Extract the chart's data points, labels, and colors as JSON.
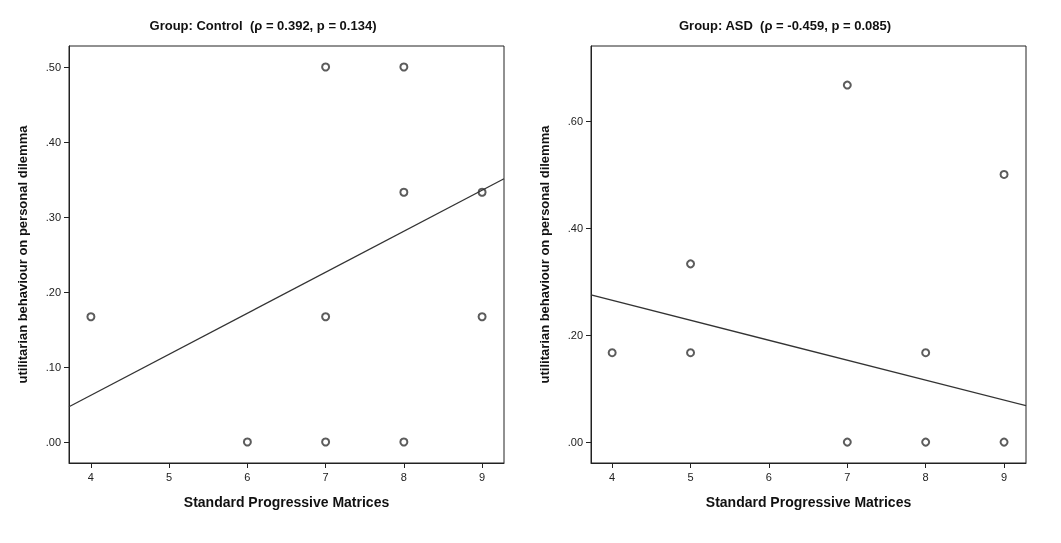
{
  "chart_data": [
    {
      "type": "scatter",
      "title": "Group: Control  (ρ = 0.392, p = 0.134)",
      "xlabel": "Standard Progressive Matrices",
      "ylabel": "utilitarian behaviour on personal dilemma",
      "xlim": [
        3.72,
        9.28
      ],
      "xticks": [
        4,
        5,
        6,
        7,
        8,
        9
      ],
      "ylim": [
        -0.028,
        0.528
      ],
      "yticks": [
        {
          "value": 0,
          "label": ".00"
        },
        {
          "value": 0.1,
          "label": ".10"
        },
        {
          "value": 0.2,
          "label": ".20"
        },
        {
          "value": 0.3,
          "label": ".30"
        },
        {
          "value": 0.4,
          "label": ".40"
        },
        {
          "value": 0.5,
          "label": ".50"
        }
      ],
      "grid": false,
      "series": [
        {
          "color": "#333333",
          "marker": "circle",
          "x": [
            4,
            6,
            7,
            7,
            7,
            8,
            8,
            8,
            9,
            9
          ],
          "values": [
            0.167,
            0,
            0.5,
            0.167,
            0,
            0.5,
            0.333,
            0,
            0.333,
            0.167
          ]
        },
        {
          "type": "line",
          "color": "#333333",
          "marker": "none",
          "line_style": "solid",
          "x": [
            3.72,
            9.28
          ],
          "values": [
            0.047,
            0.351
          ]
        }
      ]
    },
    {
      "type": "scatter",
      "title": "Group: ASD  (ρ = -0.459, p = 0.085)",
      "xlabel": "Standard Progressive Matrices",
      "ylabel": "utilitarian behaviour on personal dilemma",
      "xlim": [
        3.73,
        9.28
      ],
      "xticks": [
        4,
        5,
        6,
        7,
        8,
        9
      ],
      "ylim": [
        -0.039,
        0.74
      ],
      "yticks": [
        {
          "value": 0,
          "label": ".00"
        },
        {
          "value": 0.2,
          "label": ".20"
        },
        {
          "value": 0.4,
          "label": ".40"
        },
        {
          "value": 0.6,
          "label": ".60"
        }
      ],
      "grid": false,
      "series": [
        {
          "color": "#333333",
          "marker": "circle",
          "x": [
            4,
            5,
            5,
            7,
            7,
            8,
            8,
            9,
            9
          ],
          "values": [
            0.167,
            0.333,
            0.167,
            0.667,
            0,
            0.167,
            0,
            0.5,
            0
          ]
        },
        {
          "type": "line",
          "color": "#333333",
          "marker": "none",
          "line_style": "solid",
          "x": [
            3.73,
            9.28
          ],
          "values": [
            0.275,
            0.068
          ]
        }
      ]
    }
  ]
}
